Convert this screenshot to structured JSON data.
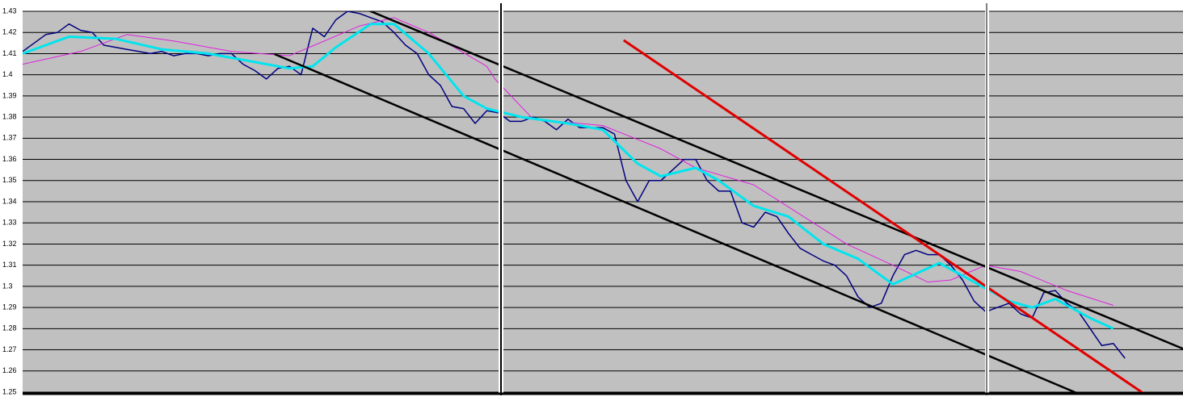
{
  "chart_data": {
    "type": "line",
    "ylim": [
      1.25,
      1.43
    ],
    "yticks": [
      1.25,
      1.26,
      1.27,
      1.28,
      1.29,
      1.3,
      1.31,
      1.32,
      1.33,
      1.34,
      1.35,
      1.36,
      1.37,
      1.38,
      1.39,
      1.4,
      1.41,
      1.42,
      1.43
    ],
    "xlim": [
      0,
      100
    ],
    "grid": true,
    "series": [
      {
        "color": "#000080",
        "width": 1.5,
        "x": [
          0,
          1,
          2,
          3,
          4,
          5,
          6,
          7,
          8,
          9,
          10,
          11,
          12,
          13,
          14,
          15,
          16,
          17,
          18,
          19,
          20,
          21,
          22,
          23,
          24,
          25,
          26,
          27,
          28,
          29,
          30,
          31,
          32,
          33,
          34,
          35,
          36,
          37,
          38,
          39,
          40,
          41,
          42,
          43,
          44,
          45,
          46,
          47,
          48,
          49,
          50,
          51,
          52,
          53,
          54,
          55,
          56,
          57,
          58,
          59,
          60,
          61,
          62,
          63,
          64,
          65,
          66,
          67,
          68,
          69,
          70,
          71,
          72,
          73,
          74,
          75,
          76,
          77,
          78,
          79,
          80,
          81,
          82,
          83,
          84,
          85,
          86,
          87,
          88,
          89,
          90,
          91,
          92,
          93,
          94,
          95
        ],
        "values": [
          1.411,
          1.415,
          1.419,
          1.42,
          1.424,
          1.421,
          1.42,
          1.414,
          1.413,
          1.412,
          1.411,
          1.41,
          1.411,
          1.409,
          1.41,
          1.41,
          1.409,
          1.41,
          1.41,
          1.405,
          1.402,
          1.398,
          1.403,
          1.404,
          1.4,
          1.422,
          1.418,
          1.426,
          1.43,
          1.429,
          1.427,
          1.425,
          1.42,
          1.414,
          1.41,
          1.4,
          1.395,
          1.385,
          1.384,
          1.377,
          1.383,
          1.382,
          1.378,
          1.378,
          1.38,
          1.378,
          1.374,
          1.379,
          1.375,
          1.375,
          1.375,
          1.372,
          1.35,
          1.34,
          1.35,
          1.35,
          1.355,
          1.36,
          1.36,
          1.35,
          1.345,
          1.345,
          1.33,
          1.328,
          1.335,
          1.333,
          1.325,
          1.318,
          1.315,
          1.312,
          1.31,
          1.305,
          1.295,
          1.29,
          1.292,
          1.305,
          1.315,
          1.317,
          1.315,
          1.315,
          1.31,
          1.303,
          1.293,
          1.288,
          1.29,
          1.292,
          1.287,
          1.285,
          1.297,
          1.298,
          1.292,
          1.288,
          1.28,
          1.272,
          1.273,
          1.266
        ]
      },
      {
        "color": "#e020e0",
        "width": 1,
        "x": [
          0,
          5,
          9,
          13,
          18,
          23,
          29,
          32,
          35,
          40,
          40.7,
          44,
          50,
          55,
          58,
          63,
          67,
          71,
          75,
          78,
          80,
          83,
          86,
          90,
          94
        ],
        "values": [
          1.405,
          1.411,
          1.419,
          1.416,
          1.411,
          1.409,
          1.423,
          1.427,
          1.42,
          1.404,
          1.398,
          1.379,
          1.376,
          1.365,
          1.356,
          1.348,
          1.334,
          1.32,
          1.31,
          1.302,
          1.303,
          1.31,
          1.307,
          1.298,
          1.291
        ]
      },
      {
        "color": "#00e5ee",
        "width": 3,
        "x": [
          0,
          4,
          8,
          12,
          16,
          20,
          23,
          25,
          27,
          30,
          32,
          35,
          38,
          40,
          43,
          47,
          50,
          53,
          55,
          58,
          60,
          63,
          66,
          69,
          72,
          75,
          77,
          79,
          82,
          85,
          87,
          89,
          92,
          94
        ],
        "values": [
          1.41,
          1.418,
          1.417,
          1.412,
          1.41,
          1.406,
          1.403,
          1.404,
          1.413,
          1.424,
          1.424,
          1.41,
          1.39,
          1.384,
          1.38,
          1.377,
          1.374,
          1.358,
          1.352,
          1.356,
          1.35,
          1.338,
          1.333,
          1.32,
          1.313,
          1.301,
          1.306,
          1.311,
          1.302,
          1.293,
          1.29,
          1.294,
          1.285,
          1.28
        ]
      },
      {
        "color": "#000000",
        "width": 2.5,
        "x": [
          29,
          100
        ],
        "values": [
          1.4323,
          1.2705
        ]
      },
      {
        "color": "#000000",
        "width": 2.5,
        "x": [
          21.7,
          91.4
        ],
        "values": [
          1.4098,
          1.2483
        ]
      },
      {
        "color": "#e00000",
        "width": 3,
        "x": [
          51.8,
          96.9
        ],
        "values": [
          1.4163,
          1.2483
        ]
      }
    ]
  }
}
